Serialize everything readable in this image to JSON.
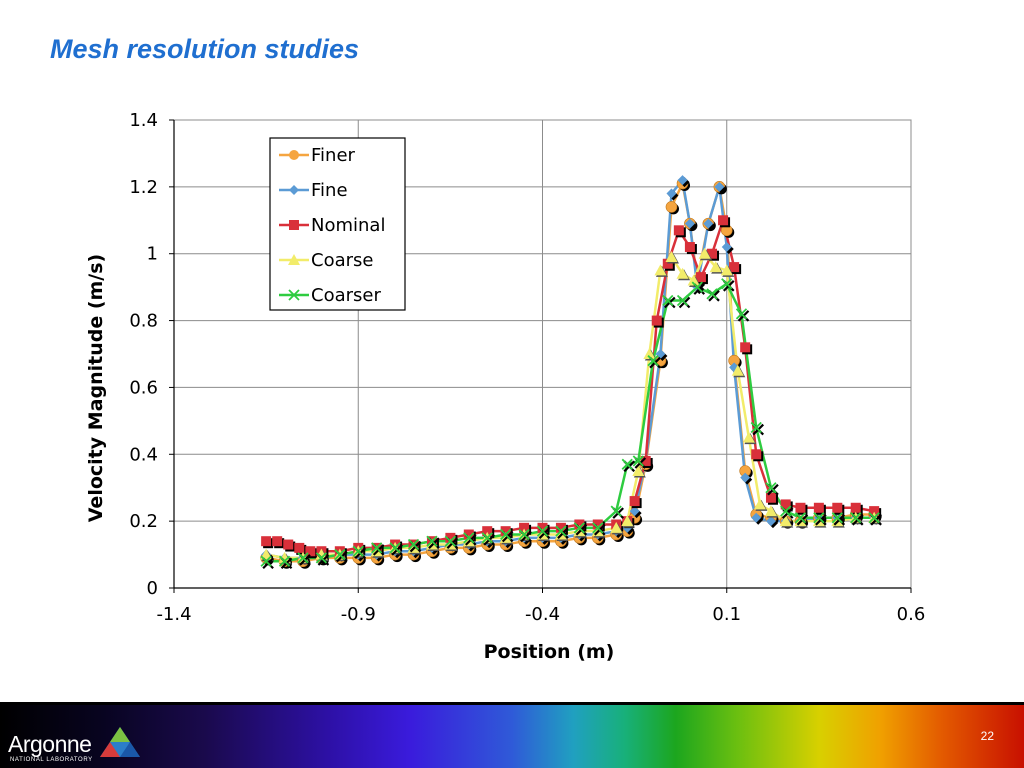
{
  "slide": {
    "title": "Mesh resolution studies",
    "page_number": "22"
  },
  "footer": {
    "logo_text": "Argonne",
    "logo_subtext": "NATIONAL LABORATORY"
  },
  "chart_data": {
    "type": "line",
    "xlabel": "Position (m)",
    "ylabel": "Velocity Magnitude (m/s)",
    "xlim": [
      -1.4,
      0.6
    ],
    "ylim": [
      0,
      1.4
    ],
    "xticks": [
      "-1.4",
      "-0.9",
      "-0.4",
      "0.1",
      "0.6"
    ],
    "yticks": [
      "0",
      "0.2",
      "0.4",
      "0.6",
      "0.8",
      "1",
      "1.2",
      "1.4"
    ],
    "grid": true,
    "legend_position": "top-left inside plot",
    "series": [
      {
        "name": "Finer",
        "color": "#f5a540",
        "marker": "circle",
        "x": [
          -1.15,
          -1.1,
          -1.05,
          -1.0,
          -0.95,
          -0.9,
          -0.85,
          -0.8,
          -0.75,
          -0.7,
          -0.65,
          -0.6,
          -0.55,
          -0.5,
          -0.45,
          -0.4,
          -0.35,
          -0.3,
          -0.25,
          -0.2,
          -0.17,
          -0.15,
          -0.12,
          -0.08,
          -0.05,
          -0.02,
          0.0,
          0.02,
          0.05,
          0.08,
          0.1,
          0.12,
          0.15,
          0.18,
          0.22,
          0.26,
          0.3,
          0.35,
          0.4,
          0.45,
          0.5
        ],
        "y": [
          0.09,
          0.08,
          0.08,
          0.09,
          0.09,
          0.09,
          0.09,
          0.1,
          0.1,
          0.11,
          0.12,
          0.12,
          0.13,
          0.13,
          0.14,
          0.14,
          0.14,
          0.15,
          0.15,
          0.16,
          0.17,
          0.21,
          0.37,
          0.68,
          1.14,
          1.21,
          1.09,
          0.92,
          1.09,
          1.2,
          1.07,
          0.68,
          0.35,
          0.22,
          0.21,
          0.2,
          0.2,
          0.21,
          0.21,
          0.22,
          0.22
        ]
      },
      {
        "name": "Fine",
        "color": "#5b9bd5",
        "marker": "diamond",
        "x": [
          -1.15,
          -1.1,
          -1.05,
          -1.0,
          -0.95,
          -0.9,
          -0.85,
          -0.8,
          -0.75,
          -0.7,
          -0.65,
          -0.6,
          -0.55,
          -0.5,
          -0.45,
          -0.4,
          -0.35,
          -0.3,
          -0.25,
          -0.2,
          -0.17,
          -0.15,
          -0.12,
          -0.08,
          -0.05,
          -0.02,
          0.0,
          0.02,
          0.05,
          0.08,
          0.1,
          0.12,
          0.15,
          0.18,
          0.22,
          0.26,
          0.3,
          0.35,
          0.4,
          0.45,
          0.5
        ],
        "y": [
          0.1,
          0.09,
          0.09,
          0.09,
          0.1,
          0.1,
          0.1,
          0.11,
          0.11,
          0.12,
          0.13,
          0.13,
          0.14,
          0.14,
          0.15,
          0.15,
          0.15,
          0.16,
          0.16,
          0.17,
          0.18,
          0.23,
          0.38,
          0.7,
          1.18,
          1.22,
          1.09,
          0.9,
          1.09,
          1.2,
          1.02,
          0.66,
          0.33,
          0.21,
          0.2,
          0.2,
          0.2,
          0.21,
          0.21,
          0.21,
          0.21
        ]
      },
      {
        "name": "Nominal",
        "color": "#d9303a",
        "marker": "square",
        "x": [
          -1.15,
          -1.12,
          -1.09,
          -1.06,
          -1.03,
          -1.0,
          -0.95,
          -0.9,
          -0.85,
          -0.8,
          -0.75,
          -0.7,
          -0.65,
          -0.6,
          -0.55,
          -0.5,
          -0.45,
          -0.4,
          -0.35,
          -0.3,
          -0.25,
          -0.2,
          -0.17,
          -0.15,
          -0.12,
          -0.09,
          -0.06,
          -0.03,
          0.0,
          0.03,
          0.06,
          0.09,
          0.12,
          0.15,
          0.18,
          0.22,
          0.26,
          0.3,
          0.35,
          0.4,
          0.45,
          0.5
        ],
        "y": [
          0.14,
          0.14,
          0.13,
          0.12,
          0.11,
          0.11,
          0.11,
          0.12,
          0.12,
          0.13,
          0.13,
          0.14,
          0.15,
          0.16,
          0.17,
          0.17,
          0.18,
          0.18,
          0.18,
          0.19,
          0.19,
          0.19,
          0.2,
          0.26,
          0.38,
          0.8,
          0.97,
          1.07,
          1.02,
          0.93,
          1.0,
          1.1,
          0.96,
          0.72,
          0.4,
          0.27,
          0.25,
          0.24,
          0.24,
          0.24,
          0.24,
          0.23
        ]
      },
      {
        "name": "Coarse",
        "color": "#f2ec6a",
        "marker": "triangle",
        "x": [
          -1.15,
          -1.1,
          -1.05,
          -1.0,
          -0.95,
          -0.9,
          -0.85,
          -0.8,
          -0.75,
          -0.7,
          -0.65,
          -0.6,
          -0.55,
          -0.5,
          -0.45,
          -0.4,
          -0.35,
          -0.3,
          -0.25,
          -0.2,
          -0.17,
          -0.14,
          -0.11,
          -0.08,
          -0.05,
          -0.02,
          0.01,
          0.04,
          0.07,
          0.1,
          0.13,
          0.16,
          0.19,
          0.22,
          0.26,
          0.3,
          0.35,
          0.4,
          0.45,
          0.5
        ],
        "y": [
          0.1,
          0.09,
          0.09,
          0.1,
          0.1,
          0.11,
          0.11,
          0.12,
          0.12,
          0.13,
          0.13,
          0.14,
          0.15,
          0.15,
          0.16,
          0.16,
          0.16,
          0.17,
          0.17,
          0.18,
          0.2,
          0.35,
          0.7,
          0.95,
          0.99,
          0.94,
          0.92,
          1.0,
          0.96,
          0.95,
          0.65,
          0.45,
          0.25,
          0.23,
          0.2,
          0.2,
          0.2,
          0.2,
          0.21,
          0.21
        ]
      },
      {
        "name": "Coarser",
        "color": "#2ecc40",
        "marker": "x",
        "x": [
          -1.15,
          -1.1,
          -1.05,
          -1.0,
          -0.95,
          -0.9,
          -0.85,
          -0.8,
          -0.75,
          -0.7,
          -0.65,
          -0.6,
          -0.55,
          -0.5,
          -0.45,
          -0.4,
          -0.35,
          -0.3,
          -0.25,
          -0.2,
          -0.17,
          -0.14,
          -0.1,
          -0.06,
          -0.02,
          0.02,
          0.06,
          0.1,
          0.14,
          0.18,
          0.22,
          0.26,
          0.3,
          0.35,
          0.4,
          0.45,
          0.5
        ],
        "y": [
          0.08,
          0.08,
          0.09,
          0.09,
          0.1,
          0.11,
          0.12,
          0.12,
          0.13,
          0.14,
          0.14,
          0.15,
          0.15,
          0.16,
          0.16,
          0.17,
          0.17,
          0.18,
          0.18,
          0.23,
          0.37,
          0.38,
          0.68,
          0.86,
          0.86,
          0.9,
          0.88,
          0.91,
          0.82,
          0.48,
          0.3,
          0.23,
          0.21,
          0.21,
          0.21,
          0.21,
          0.21
        ]
      }
    ]
  }
}
